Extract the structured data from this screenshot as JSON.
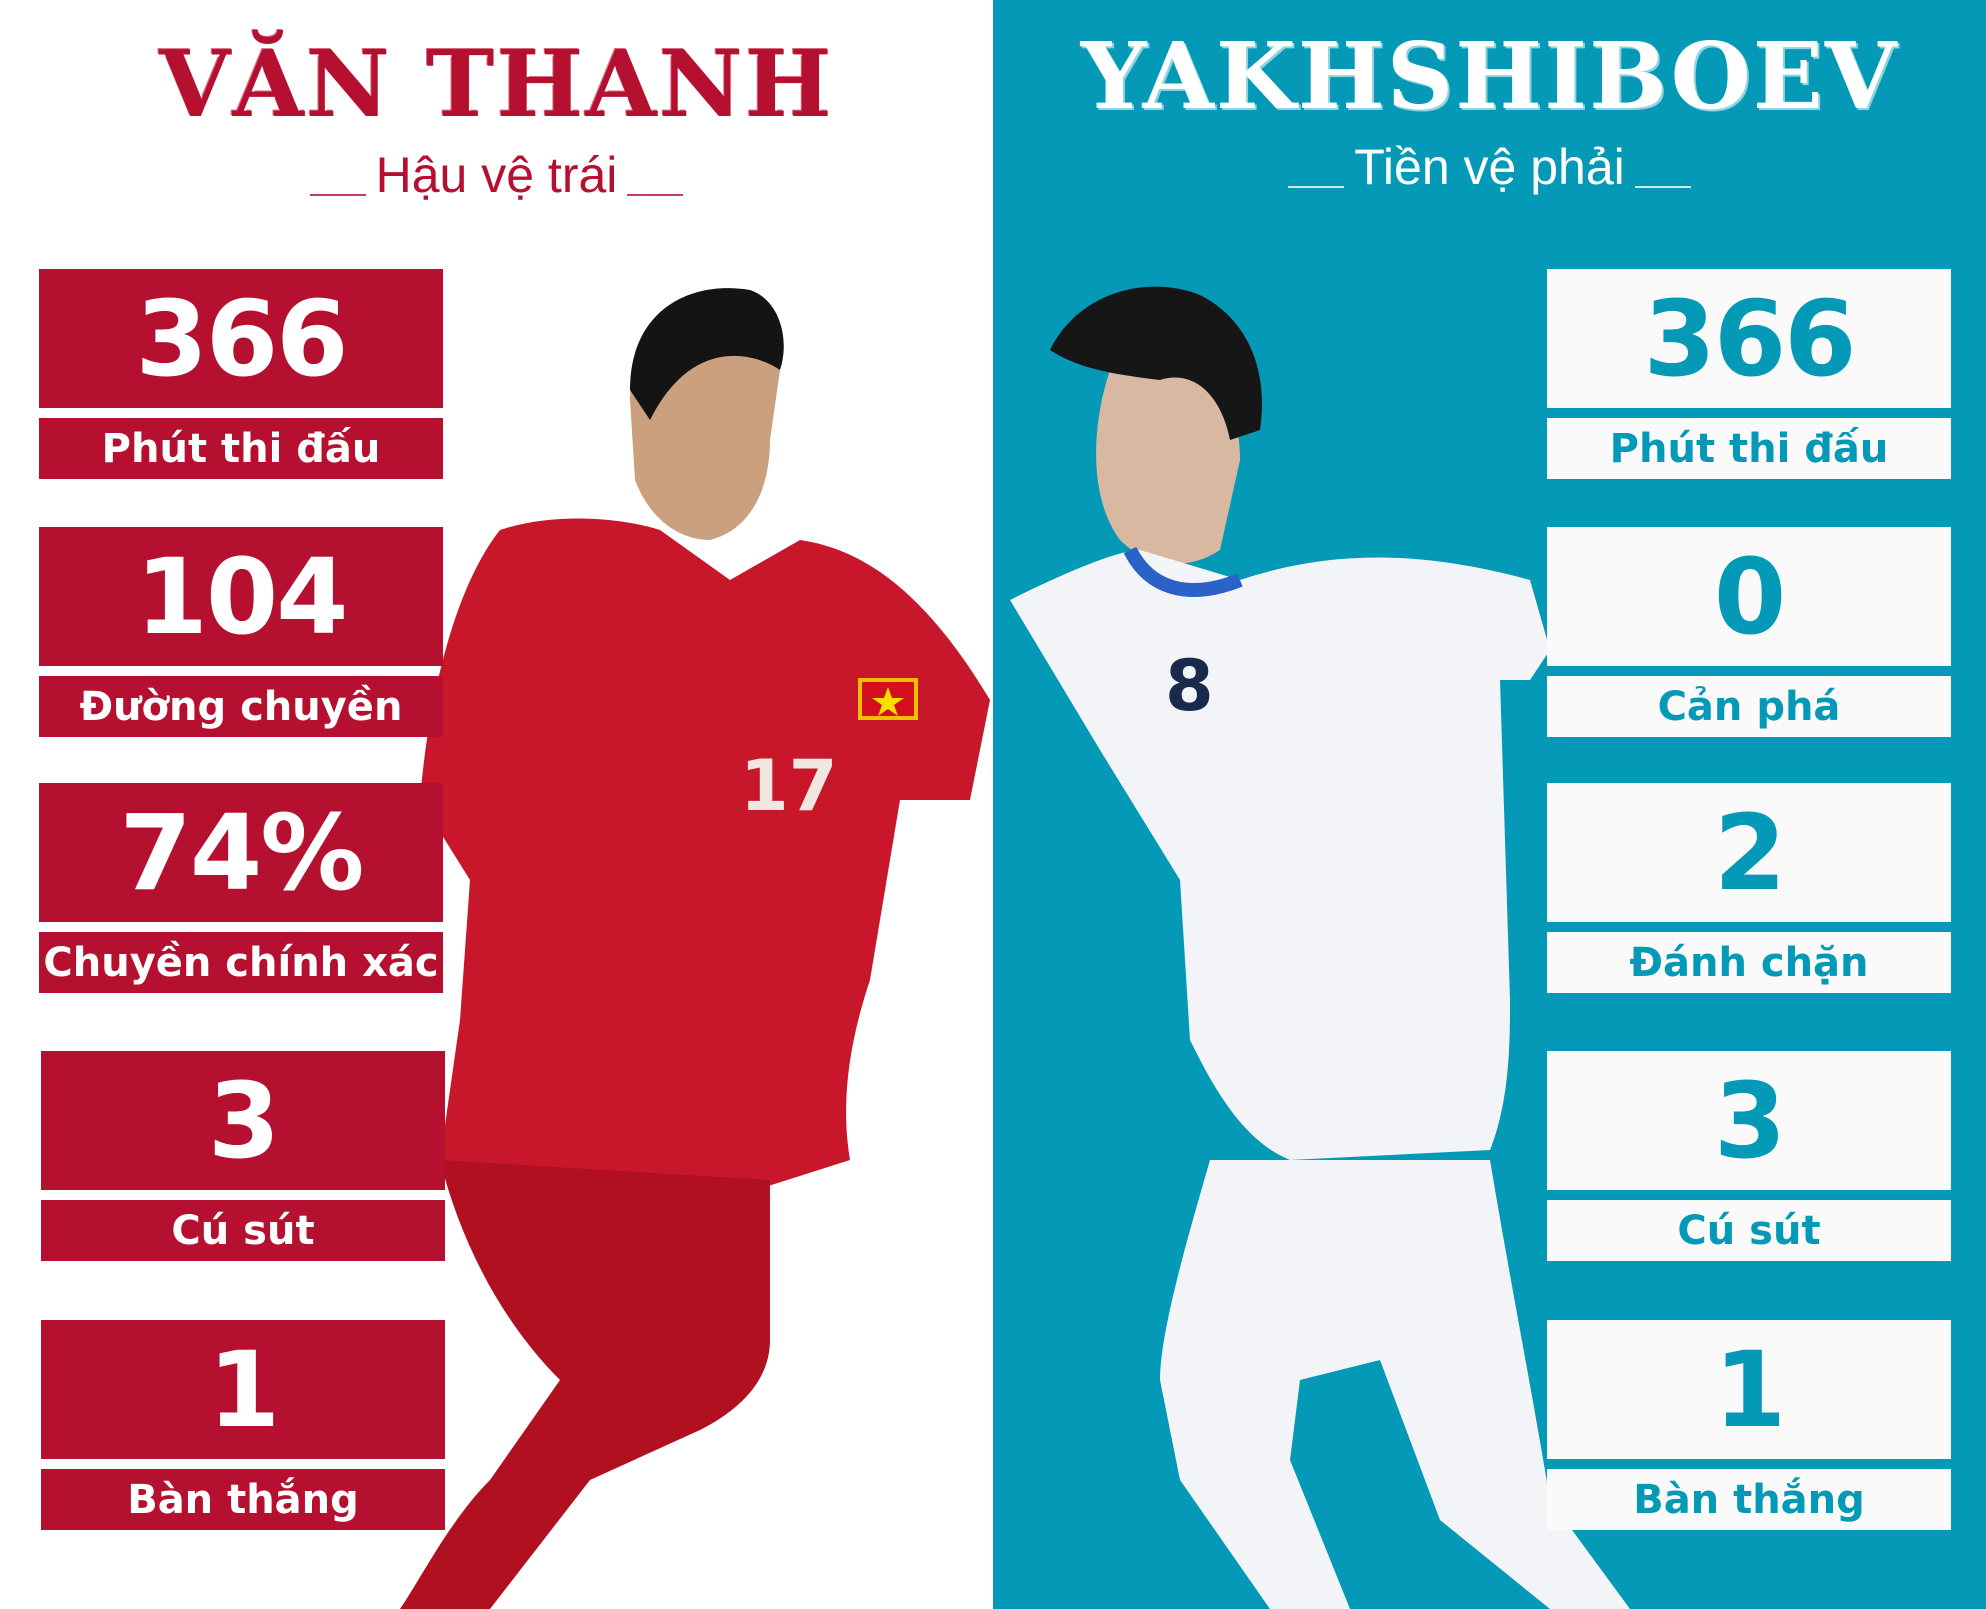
{
  "colors": {
    "red": "#b5102f",
    "teal": "#0499b6",
    "white": "#ffffff"
  },
  "left": {
    "name": "VĂN THANH",
    "position": "Hậu vệ trái",
    "jersey_number": "17",
    "stats": [
      {
        "value": "366",
        "label": "Phút thi đấu"
      },
      {
        "value": "104",
        "label": "Đường chuyền"
      },
      {
        "value": "74%",
        "label": "Chuyền chính xác"
      },
      {
        "value": "3",
        "label": "Cú sút"
      },
      {
        "value": "1",
        "label": "Bàn thắng"
      }
    ]
  },
  "right": {
    "name": "YAKHSHIBOEV",
    "position": "Tiền vệ phải",
    "jersey_number": "8",
    "stats": [
      {
        "value": "366",
        "label": "Phút thi đấu"
      },
      {
        "value": "0",
        "label": "Cản phá"
      },
      {
        "value": "2",
        "label": "Đánh chặn"
      },
      {
        "value": "3",
        "label": "Cú sút"
      },
      {
        "value": "1",
        "label": "Bàn thắng"
      }
    ]
  }
}
